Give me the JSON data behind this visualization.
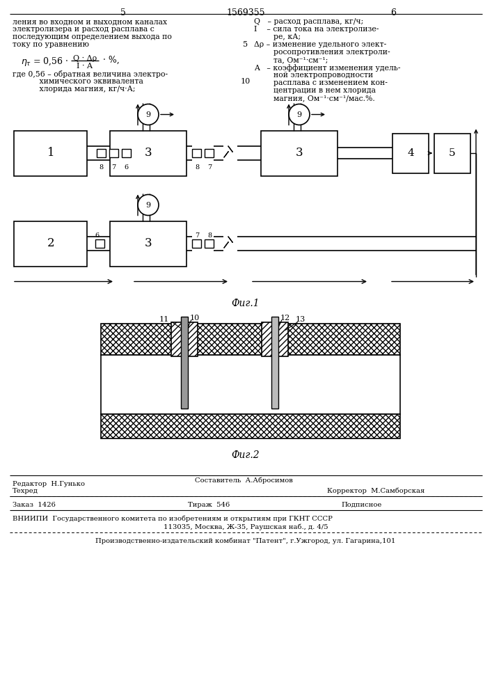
{
  "page_color": "#ffffff",
  "title_patent": "1569355",
  "col_left_num": "5",
  "col_right_num": "6",
  "line_num_5": "5",
  "line_num_10": "10",
  "fig1_label": "Фиг.1",
  "fig2_label": "Фиг.2",
  "footer_editor": "Редактор  Н.Гунько",
  "footer_composer": "Составитель  А.Абросимов",
  "footer_techred": "Техред",
  "footer_corrector": "Корректор  М.Самборская",
  "footer_order": "Заказ  1426",
  "footer_tirazh": "Тираж  546",
  "footer_podpisnoe": "Подписное",
  "footer_vniiipi": "ВНИИПИ  Государственного комитета по изобретениям и открытиям при ГКНТ СССР",
  "footer_address": "113035, Москва, Ж-35, Раушская наб., д. 4/5",
  "footer_pik": "Производственно-издательский комбинат \"Патент\", г.Ужгород, ул. Гагарина,101"
}
